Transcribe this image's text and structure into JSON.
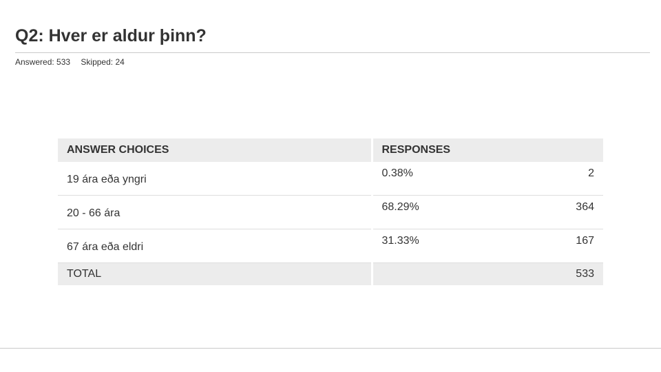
{
  "question": {
    "title": "Q2: Hver er aldur þinn?",
    "answered_text": "Answered: 533",
    "skipped_text": "Skipped: 24"
  },
  "table": {
    "headers": {
      "answer_choices": "ANSWER CHOICES",
      "responses": "RESPONSES"
    },
    "rows": [
      {
        "choice": "19 ára eða yngri",
        "percent": "0.38%",
        "count": "2"
      },
      {
        "choice": "20 - 66 ára",
        "percent": "68.29%",
        "count": "364"
      },
      {
        "choice": "67 ára eða eldri",
        "percent": "31.33%",
        "count": "167"
      }
    ],
    "total": {
      "label": "TOTAL",
      "count": "533"
    }
  },
  "colors": {
    "text": "#333333",
    "header_bg": "#ececec",
    "rule": "#c9c9c9"
  }
}
